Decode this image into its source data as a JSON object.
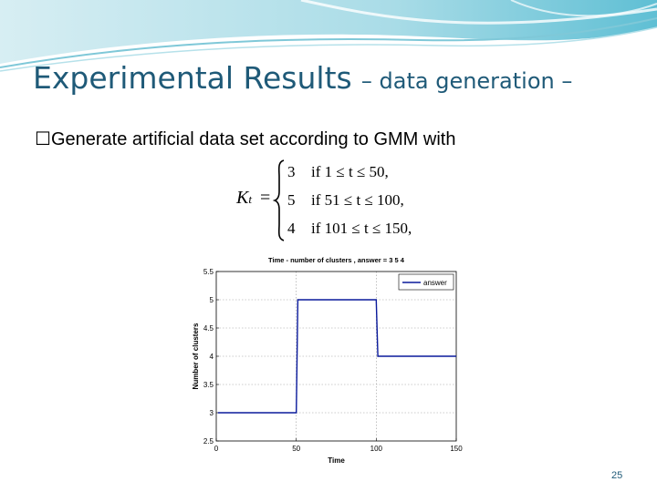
{
  "slide": {
    "title": "Experimental Results",
    "subtitle": "– data generation –",
    "bullet_marker_icon": "checkbox-icon",
    "bullet_text": "Generate artificial data set according to GMM with",
    "formula": {
      "lhs": "K",
      "lhs_sub": "t",
      "eq": "=",
      "cases": [
        {
          "k": "3",
          "cond": "if 1 ≤ t ≤ 50,"
        },
        {
          "k": "5",
          "cond": "if 51 ≤ t ≤ 100,"
        },
        {
          "k": "4",
          "cond": "if 101 ≤ t ≤ 150,"
        }
      ]
    },
    "page_number": "25",
    "colors": {
      "title": "#1f5a78",
      "header_wave": "#7fc8d8",
      "series": "#0a1a9c"
    }
  },
  "chart_data": {
    "type": "line",
    "title": "Time - number of clusters , answer = 3  5  4",
    "xlabel": "Time",
    "ylabel": "Number of clusters",
    "xlim": [
      0,
      150
    ],
    "ylim": [
      2.5,
      5.5
    ],
    "xticks": [
      "0",
      "50",
      "100",
      "150"
    ],
    "yticks": [
      "2.5",
      "3",
      "3.5",
      "4",
      "4.5",
      "5",
      "5.5"
    ],
    "grid": true,
    "legend_position": "top-right",
    "series": [
      {
        "name": "answer",
        "x": [
          1,
          50,
          51,
          100,
          101,
          150
        ],
        "y": [
          3,
          3,
          5,
          5,
          4,
          4
        ]
      }
    ]
  }
}
